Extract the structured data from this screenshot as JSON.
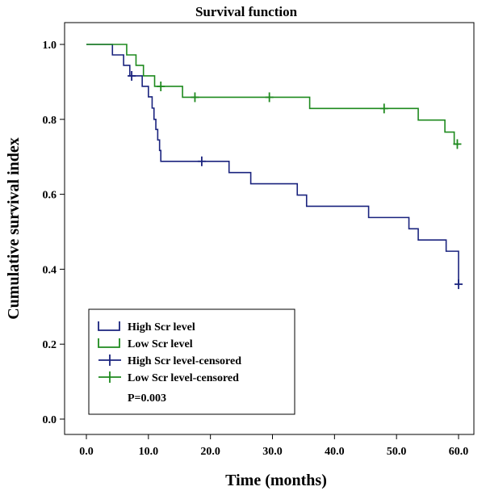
{
  "chart_data": {
    "type": "line",
    "subtype": "kaplan-meier step",
    "title": "Survival function",
    "xlabel": "Time (months)",
    "ylabel": "Cumulative survival index",
    "xlim": [
      0,
      60
    ],
    "ylim": [
      0,
      1.0
    ],
    "x_ticks": [
      "0.0",
      "10.0",
      "20.0",
      "30.0",
      "40.0",
      "50.0",
      "60.0"
    ],
    "x_tick_values": [
      0,
      10,
      20,
      30,
      40,
      50,
      60
    ],
    "y_ticks": [
      "0.0",
      "0.2",
      "0.4",
      "0.6",
      "0.8",
      "1.0"
    ],
    "y_tick_values": [
      0,
      0.2,
      0.4,
      0.6,
      0.8,
      1.0
    ],
    "grid": false,
    "legend_position": "bottom-left",
    "annotation": "P=0.003",
    "series": [
      {
        "name": "High Scr level",
        "color": "#1a237e",
        "steps": [
          [
            0,
            1.0
          ],
          [
            4.2,
            0.972
          ],
          [
            6.0,
            0.944
          ],
          [
            7.0,
            0.916
          ],
          [
            9.0,
            0.888
          ],
          [
            10.0,
            0.86
          ],
          [
            10.6,
            0.83
          ],
          [
            10.9,
            0.8
          ],
          [
            11.2,
            0.773
          ],
          [
            11.5,
            0.745
          ],
          [
            11.8,
            0.717
          ],
          [
            12.0,
            0.688
          ],
          [
            23.0,
            0.658
          ],
          [
            26.5,
            0.628
          ],
          [
            34.0,
            0.598
          ],
          [
            35.5,
            0.568
          ],
          [
            45.5,
            0.538
          ],
          [
            52.0,
            0.508
          ],
          [
            53.5,
            0.478
          ],
          [
            58.0,
            0.448
          ],
          [
            60.0,
            0.36
          ]
        ],
        "end_x": 60.0
      },
      {
        "name": "Low Scr level",
        "color": "#1e8a1e",
        "steps": [
          [
            0,
            1.0
          ],
          [
            6.5,
            0.972
          ],
          [
            8.0,
            0.944
          ],
          [
            9.2,
            0.916
          ],
          [
            11.0,
            0.888
          ],
          [
            15.5,
            0.859
          ],
          [
            36.0,
            0.829
          ],
          [
            53.5,
            0.798
          ],
          [
            57.8,
            0.766
          ],
          [
            59.3,
            0.734
          ]
        ],
        "end_x": 60.0
      },
      {
        "name": "High Scr level-censored",
        "color": "#1a237e",
        "marker": "+",
        "points": [
          [
            7.3,
            0.916
          ],
          [
            18.6,
            0.688
          ],
          [
            60.0,
            0.36
          ]
        ]
      },
      {
        "name": "Low Scr level-censored",
        "color": "#1e8a1e",
        "marker": "+",
        "points": [
          [
            12.0,
            0.888
          ],
          [
            17.5,
            0.859
          ],
          [
            29.5,
            0.859
          ],
          [
            48.0,
            0.829
          ],
          [
            59.8,
            0.734
          ]
        ]
      }
    ]
  }
}
